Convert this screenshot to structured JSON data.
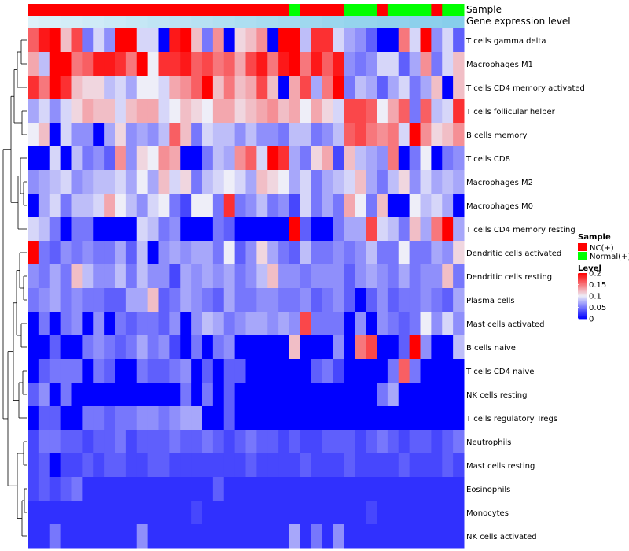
{
  "chart_data": {
    "type": "heatmap",
    "title": "",
    "annotation_titles": {
      "sample": "Sample",
      "gene_expression": "Gene expression level"
    },
    "row_labels": [
      "T cells gamma delta",
      "Macrophages M1",
      "T cells CD4 memory activated",
      "T cells follicular helper",
      "B cells memory",
      "T cells CD8",
      "Macrophages M2",
      "Macrophages M0",
      "T cells CD4 memory resting",
      "Dendritic cells activated",
      "Dendritic cells resting",
      "Plasma cells",
      "Mast cells activated",
      "B cells naive",
      "T cells CD4 naive",
      "NK cells resting",
      "T cells regulatory  Tregs",
      "Neutrophils",
      "Mast cells resting",
      "Eosinophils",
      "Monocytes",
      "NK cells activated"
    ],
    "sample_groups": [
      "NC",
      "NC",
      "NC",
      "NC",
      "NC",
      "NC",
      "NC",
      "NC",
      "NC",
      "NC",
      "NC",
      "NC",
      "NC",
      "NC",
      "NC",
      "NC",
      "NC",
      "NC",
      "NC",
      "NC",
      "NC",
      "NC",
      "NC",
      "NC",
      "Normal",
      "NC",
      "NC",
      "NC",
      "NC",
      "Normal",
      "Normal",
      "Normal",
      "NC",
      "Normal",
      "Normal",
      "Normal",
      "Normal",
      "NC",
      "Normal",
      "Normal"
    ],
    "gene_expression_annotation": [
      0.2,
      0.19,
      0.19,
      0.18,
      0.18,
      0.17,
      0.17,
      0.16,
      0.16,
      0.15,
      0.15,
      0.14,
      0.14,
      0.13,
      0.13,
      0.12,
      0.12,
      0.11,
      0.11,
      0.1,
      0.1,
      0.09,
      0.09,
      0.08,
      0.08,
      0.07,
      0.07,
      0.06,
      0.06,
      0.05,
      0.05,
      0.05,
      0.04,
      0.04,
      0.04,
      0.03,
      0.03,
      0.03,
      0.02,
      0.02
    ],
    "values": [
      [
        0.16,
        0.19,
        0.2,
        0.12,
        0.17,
        0.05,
        0.09,
        0.06,
        0.22,
        0.22,
        0.09,
        0.09,
        0,
        0.19,
        0.2,
        0.12,
        0.05,
        0.14,
        0,
        0.11,
        0.12,
        0.14,
        0,
        0.22,
        0.23,
        0.08,
        0.18,
        0.18,
        0.09,
        0.07,
        0.06,
        0.04,
        0,
        0,
        0.15,
        0.09,
        0.2,
        0.06,
        0.09,
        0.04
      ],
      [
        0.13,
        0.08,
        0.22,
        0.22,
        0.15,
        0.16,
        0.19,
        0.19,
        0.18,
        0.15,
        0.21,
        0.1,
        0.18,
        0.18,
        0.19,
        0.16,
        0.17,
        0.15,
        0.16,
        0.13,
        0.17,
        0.19,
        0.15,
        0.19,
        0.2,
        0.15,
        0.19,
        0.16,
        0.19,
        0.06,
        0.05,
        0.06,
        0.09,
        0.09,
        0.04,
        0.07,
        0.14,
        0.05,
        0.09,
        0.12
      ],
      [
        0.18,
        0.15,
        0.22,
        0.18,
        0.12,
        0.11,
        0.11,
        0.08,
        0.09,
        0.07,
        0.1,
        0.1,
        0.09,
        0.13,
        0.14,
        0.16,
        0.22,
        0.12,
        0.15,
        0.12,
        0.13,
        0.17,
        0.12,
        0,
        0.13,
        0.17,
        0.07,
        0.15,
        0.22,
        0.05,
        0.08,
        0.07,
        0.04,
        0.07,
        0.09,
        0.05,
        0.07,
        0.12,
        0,
        0.12
      ],
      [
        0.07,
        0.09,
        0.06,
        0.09,
        0.11,
        0.13,
        0.12,
        0.12,
        0.09,
        0.12,
        0.13,
        0.13,
        0.09,
        0.1,
        0.12,
        0.11,
        0.1,
        0.13,
        0.13,
        0.11,
        0.12,
        0.13,
        0.14,
        0.12,
        0.13,
        0.1,
        0.13,
        0.11,
        0.09,
        0.17,
        0.17,
        0.16,
        0.1,
        0.13,
        0.16,
        0.05,
        0.16,
        0.08,
        0.09,
        0.18
      ],
      [
        0.1,
        0.12,
        0,
        0.09,
        0.06,
        0.06,
        0,
        0.07,
        0.11,
        0.06,
        0.07,
        0.06,
        0.08,
        0.16,
        0.12,
        0.05,
        0.09,
        0.08,
        0.08,
        0.06,
        0.08,
        0.06,
        0.06,
        0.05,
        0.08,
        0.08,
        0.05,
        0.06,
        0.08,
        0.16,
        0.17,
        0.15,
        0.14,
        0.15,
        0.09,
        0.23,
        0.14,
        0.11,
        0.12,
        0.14
      ],
      [
        0,
        0,
        0.09,
        0,
        0.08,
        0.05,
        0.06,
        0.04,
        0.14,
        0.06,
        0.11,
        0.1,
        0.14,
        0.13,
        0,
        0,
        0.05,
        0.08,
        0.07,
        0.14,
        0.16,
        0.09,
        0.2,
        0.18,
        0.07,
        0.05,
        0.11,
        0.13,
        0.03,
        0.12,
        0.08,
        0.07,
        0.06,
        0.15,
        0,
        0.05,
        0.1,
        0,
        0.05,
        0.06
      ],
      [
        0.06,
        0.07,
        0.08,
        0.09,
        0.06,
        0.07,
        0.08,
        0.08,
        0.09,
        0.07,
        0.1,
        0.07,
        0.12,
        0.09,
        0.11,
        0.05,
        0.08,
        0.09,
        0.1,
        0.09,
        0.07,
        0.12,
        0.11,
        0.1,
        0.07,
        0.09,
        0.05,
        0.07,
        0.08,
        0.09,
        0.12,
        0.07,
        0.05,
        0.08,
        0.11,
        0.06,
        0.09,
        0.07,
        0.08,
        0.07
      ],
      [
        0,
        0.07,
        0.09,
        0.05,
        0.08,
        0.08,
        0.09,
        0.13,
        0.1,
        0.08,
        0.06,
        0.09,
        0.1,
        0.05,
        0.03,
        0.1,
        0.1,
        0.05,
        0.18,
        0.05,
        0.06,
        0.08,
        0.05,
        0.06,
        0.03,
        0.09,
        0.05,
        0.07,
        0.05,
        0.13,
        0.1,
        0.05,
        0.12,
        0,
        0,
        0.1,
        0.08,
        0.09,
        0.07,
        0
      ],
      [
        0.09,
        0.08,
        0.05,
        0,
        0.05,
        0.05,
        0,
        0,
        0,
        0,
        0.09,
        0.08,
        0.05,
        0.06,
        0,
        0,
        0,
        0.05,
        0.04,
        0,
        0,
        0,
        0,
        0,
        0.2,
        0.04,
        0,
        0,
        0.05,
        0.07,
        0.07,
        0.17,
        0.09,
        0.08,
        0.05,
        0.12,
        0.07,
        0.15,
        0.2,
        0.07
      ],
      [
        0.2,
        0.05,
        0.04,
        0.06,
        0.05,
        0.06,
        0.05,
        0.05,
        0.07,
        0.04,
        0.08,
        0,
        0.06,
        0.07,
        0.06,
        0.07,
        0.07,
        0.05,
        0.1,
        0.04,
        0.06,
        0.11,
        0.07,
        0.05,
        0.04,
        0.08,
        0.05,
        0.05,
        0.06,
        0.05,
        0.06,
        0.08,
        0.05,
        0.05,
        0.1,
        0.05,
        0.05,
        0.07,
        0.06,
        0.11
      ],
      [
        0.06,
        0.05,
        0.07,
        0.05,
        0.12,
        0.08,
        0.06,
        0.06,
        0.08,
        0.05,
        0.08,
        0.06,
        0.06,
        0.03,
        0.07,
        0.06,
        0.07,
        0.06,
        0.07,
        0.05,
        0.06,
        0.08,
        0.12,
        0.06,
        0.06,
        0.05,
        0.06,
        0.06,
        0.06,
        0.04,
        0.06,
        0.07,
        0.06,
        0.05,
        0.07,
        0.05,
        0.06,
        0.06,
        0.12,
        0.05
      ],
      [
        0.05,
        0.06,
        0.07,
        0.05,
        0.06,
        0.05,
        0.05,
        0.04,
        0.04,
        0.07,
        0.07,
        0.12,
        0.04,
        0.05,
        0.07,
        0.06,
        0.05,
        0.04,
        0.07,
        0.05,
        0.05,
        0.06,
        0.06,
        0.05,
        0.05,
        0.06,
        0.04,
        0.05,
        0.06,
        0.04,
        0,
        0.04,
        0.06,
        0.04,
        0.05,
        0.05,
        0.06,
        0.05,
        0.04,
        0.07
      ],
      [
        0,
        0.05,
        0,
        0.05,
        0.06,
        0,
        0.06,
        0,
        0.05,
        0.04,
        0.05,
        0.05,
        0.04,
        0.06,
        0,
        0.06,
        0.08,
        0.07,
        0.05,
        0.06,
        0.07,
        0.07,
        0.06,
        0.07,
        0.06,
        0.17,
        0.05,
        0.05,
        0.05,
        0,
        0.06,
        0,
        0.06,
        0.05,
        0.04,
        0.05,
        0.1,
        0.06,
        0.09,
        0.06
      ],
      [
        0,
        0,
        0.04,
        0,
        0,
        0.05,
        0.06,
        0.05,
        0.04,
        0.05,
        0.07,
        0.05,
        0.06,
        0.03,
        0,
        0.05,
        0,
        0.05,
        0.06,
        0,
        0,
        0,
        0,
        0,
        0.12,
        0,
        0,
        0,
        0.06,
        0,
        0.15,
        0.17,
        0,
        0,
        0.04,
        0.22,
        0.06,
        0,
        0,
        0.08
      ],
      [
        0,
        0.04,
        0.05,
        0.05,
        0.05,
        0,
        0.05,
        0.04,
        0,
        0,
        0.05,
        0.04,
        0.04,
        0.05,
        0.06,
        0,
        0.04,
        0,
        0.04,
        0.04,
        0,
        0,
        0,
        0,
        0,
        0,
        0.04,
        0.05,
        0.03,
        0,
        0,
        0,
        0,
        0.05,
        0.16,
        0.05,
        0,
        0,
        0,
        0
      ],
      [
        0.04,
        0.06,
        0,
        0.05,
        0,
        0,
        0,
        0,
        0,
        0,
        0,
        0,
        0,
        0,
        0.05,
        0,
        0.05,
        0,
        0.04,
        0,
        0,
        0,
        0,
        0,
        0,
        0,
        0,
        0,
        0,
        0,
        0,
        0,
        0.05,
        0.07,
        0,
        0,
        0,
        0,
        0,
        0
      ],
      [
        0,
        0.04,
        0.04,
        0,
        0,
        0.05,
        0.05,
        0.04,
        0.05,
        0.05,
        0.06,
        0.06,
        0.05,
        0.06,
        0.07,
        0.07,
        0,
        0,
        0.04,
        0,
        0,
        0,
        0,
        0,
        0,
        0,
        0,
        0,
        0,
        0,
        0,
        0,
        0,
        0,
        0,
        0,
        0,
        0,
        0,
        0
      ],
      [
        0.03,
        0.05,
        0.05,
        0.04,
        0.04,
        0.03,
        0.04,
        0.04,
        0.05,
        0.03,
        0.04,
        0.04,
        0.04,
        0.05,
        0.04,
        0.04,
        0.05,
        0.04,
        0.03,
        0.04,
        0.05,
        0.04,
        0.04,
        0.03,
        0.04,
        0.03,
        0.03,
        0.04,
        0.04,
        0.04,
        0.03,
        0.04,
        0.05,
        0.04,
        0.03,
        0.04,
        0.04,
        0.03,
        0.04,
        0.05
      ],
      [
        0.03,
        0.04,
        0,
        0.03,
        0.03,
        0.04,
        0.03,
        0.04,
        0.04,
        0.03,
        0.03,
        0.04,
        0.04,
        0.03,
        0.03,
        0.03,
        0.03,
        0.03,
        0.03,
        0.03,
        0.04,
        0.03,
        0.03,
        0.03,
        0.03,
        0.04,
        0.03,
        0.03,
        0.03,
        0.04,
        0.03,
        0.03,
        0.03,
        0.03,
        0.04,
        0.03,
        0.03,
        0.03,
        0.04,
        0.03
      ],
      [
        0.03,
        0.04,
        0.03,
        0.04,
        0.05,
        0.02,
        0.02,
        0.02,
        0.02,
        0.02,
        0.02,
        0.02,
        0.02,
        0.02,
        0.02,
        0.02,
        0.02,
        0.04,
        0.02,
        0.02,
        0.02,
        0.02,
        0.02,
        0.02,
        0.02,
        0.02,
        0.02,
        0.02,
        0.02,
        0.02,
        0.02,
        0.02,
        0.02,
        0.02,
        0.02,
        0.02,
        0.02,
        0.02,
        0.02,
        0.02
      ],
      [
        0.02,
        0.02,
        0.02,
        0.02,
        0.02,
        0.02,
        0.02,
        0.02,
        0.02,
        0.02,
        0.02,
        0.02,
        0.02,
        0.02,
        0.02,
        0.03,
        0.02,
        0.02,
        0.02,
        0.02,
        0.02,
        0.02,
        0.02,
        0.02,
        0.02,
        0.02,
        0.02,
        0.02,
        0.02,
        0.02,
        0.02,
        0.03,
        0.02,
        0.02,
        0.02,
        0.02,
        0.02,
        0.02,
        0.02,
        0.02
      ],
      [
        0.02,
        0.02,
        0.05,
        0.02,
        0.02,
        0.02,
        0.02,
        0.02,
        0.02,
        0.02,
        0.06,
        0.02,
        0.02,
        0.02,
        0.02,
        0.02,
        0.02,
        0.02,
        0.02,
        0.02,
        0.02,
        0.02,
        0.02,
        0.02,
        0.07,
        0.02,
        0.05,
        0.02,
        0.06,
        0.02,
        0.02,
        0.02,
        0.02,
        0.02,
        0.02,
        0.02,
        0.02,
        0.02,
        0.02,
        0.02
      ]
    ],
    "colorscale": {
      "low": "#0000FF",
      "mid": "#EEEEF8",
      "high": "#FF0000",
      "low_value": 0,
      "mid_value": 0.1,
      "high_value": 0.2
    },
    "legend": {
      "sample_title": "Sample",
      "groups": [
        {
          "key": "NC",
          "label": "NC(+)",
          "color": "#FF0000"
        },
        {
          "key": "Normal",
          "label": "Normal(+)",
          "color": "#00FF00"
        }
      ],
      "level_title": "Level",
      "level_ticks": [
        0.2,
        0.15,
        0.1,
        0.05,
        0
      ],
      "level_tick_labels": [
        "0.2",
        "0.15",
        "0.1",
        "0.05",
        "0"
      ],
      "placement": "right"
    },
    "gene_expression_color": "#87CEEB",
    "gene_expression_light": "#DDF1F9",
    "dendrogram": "rows"
  }
}
